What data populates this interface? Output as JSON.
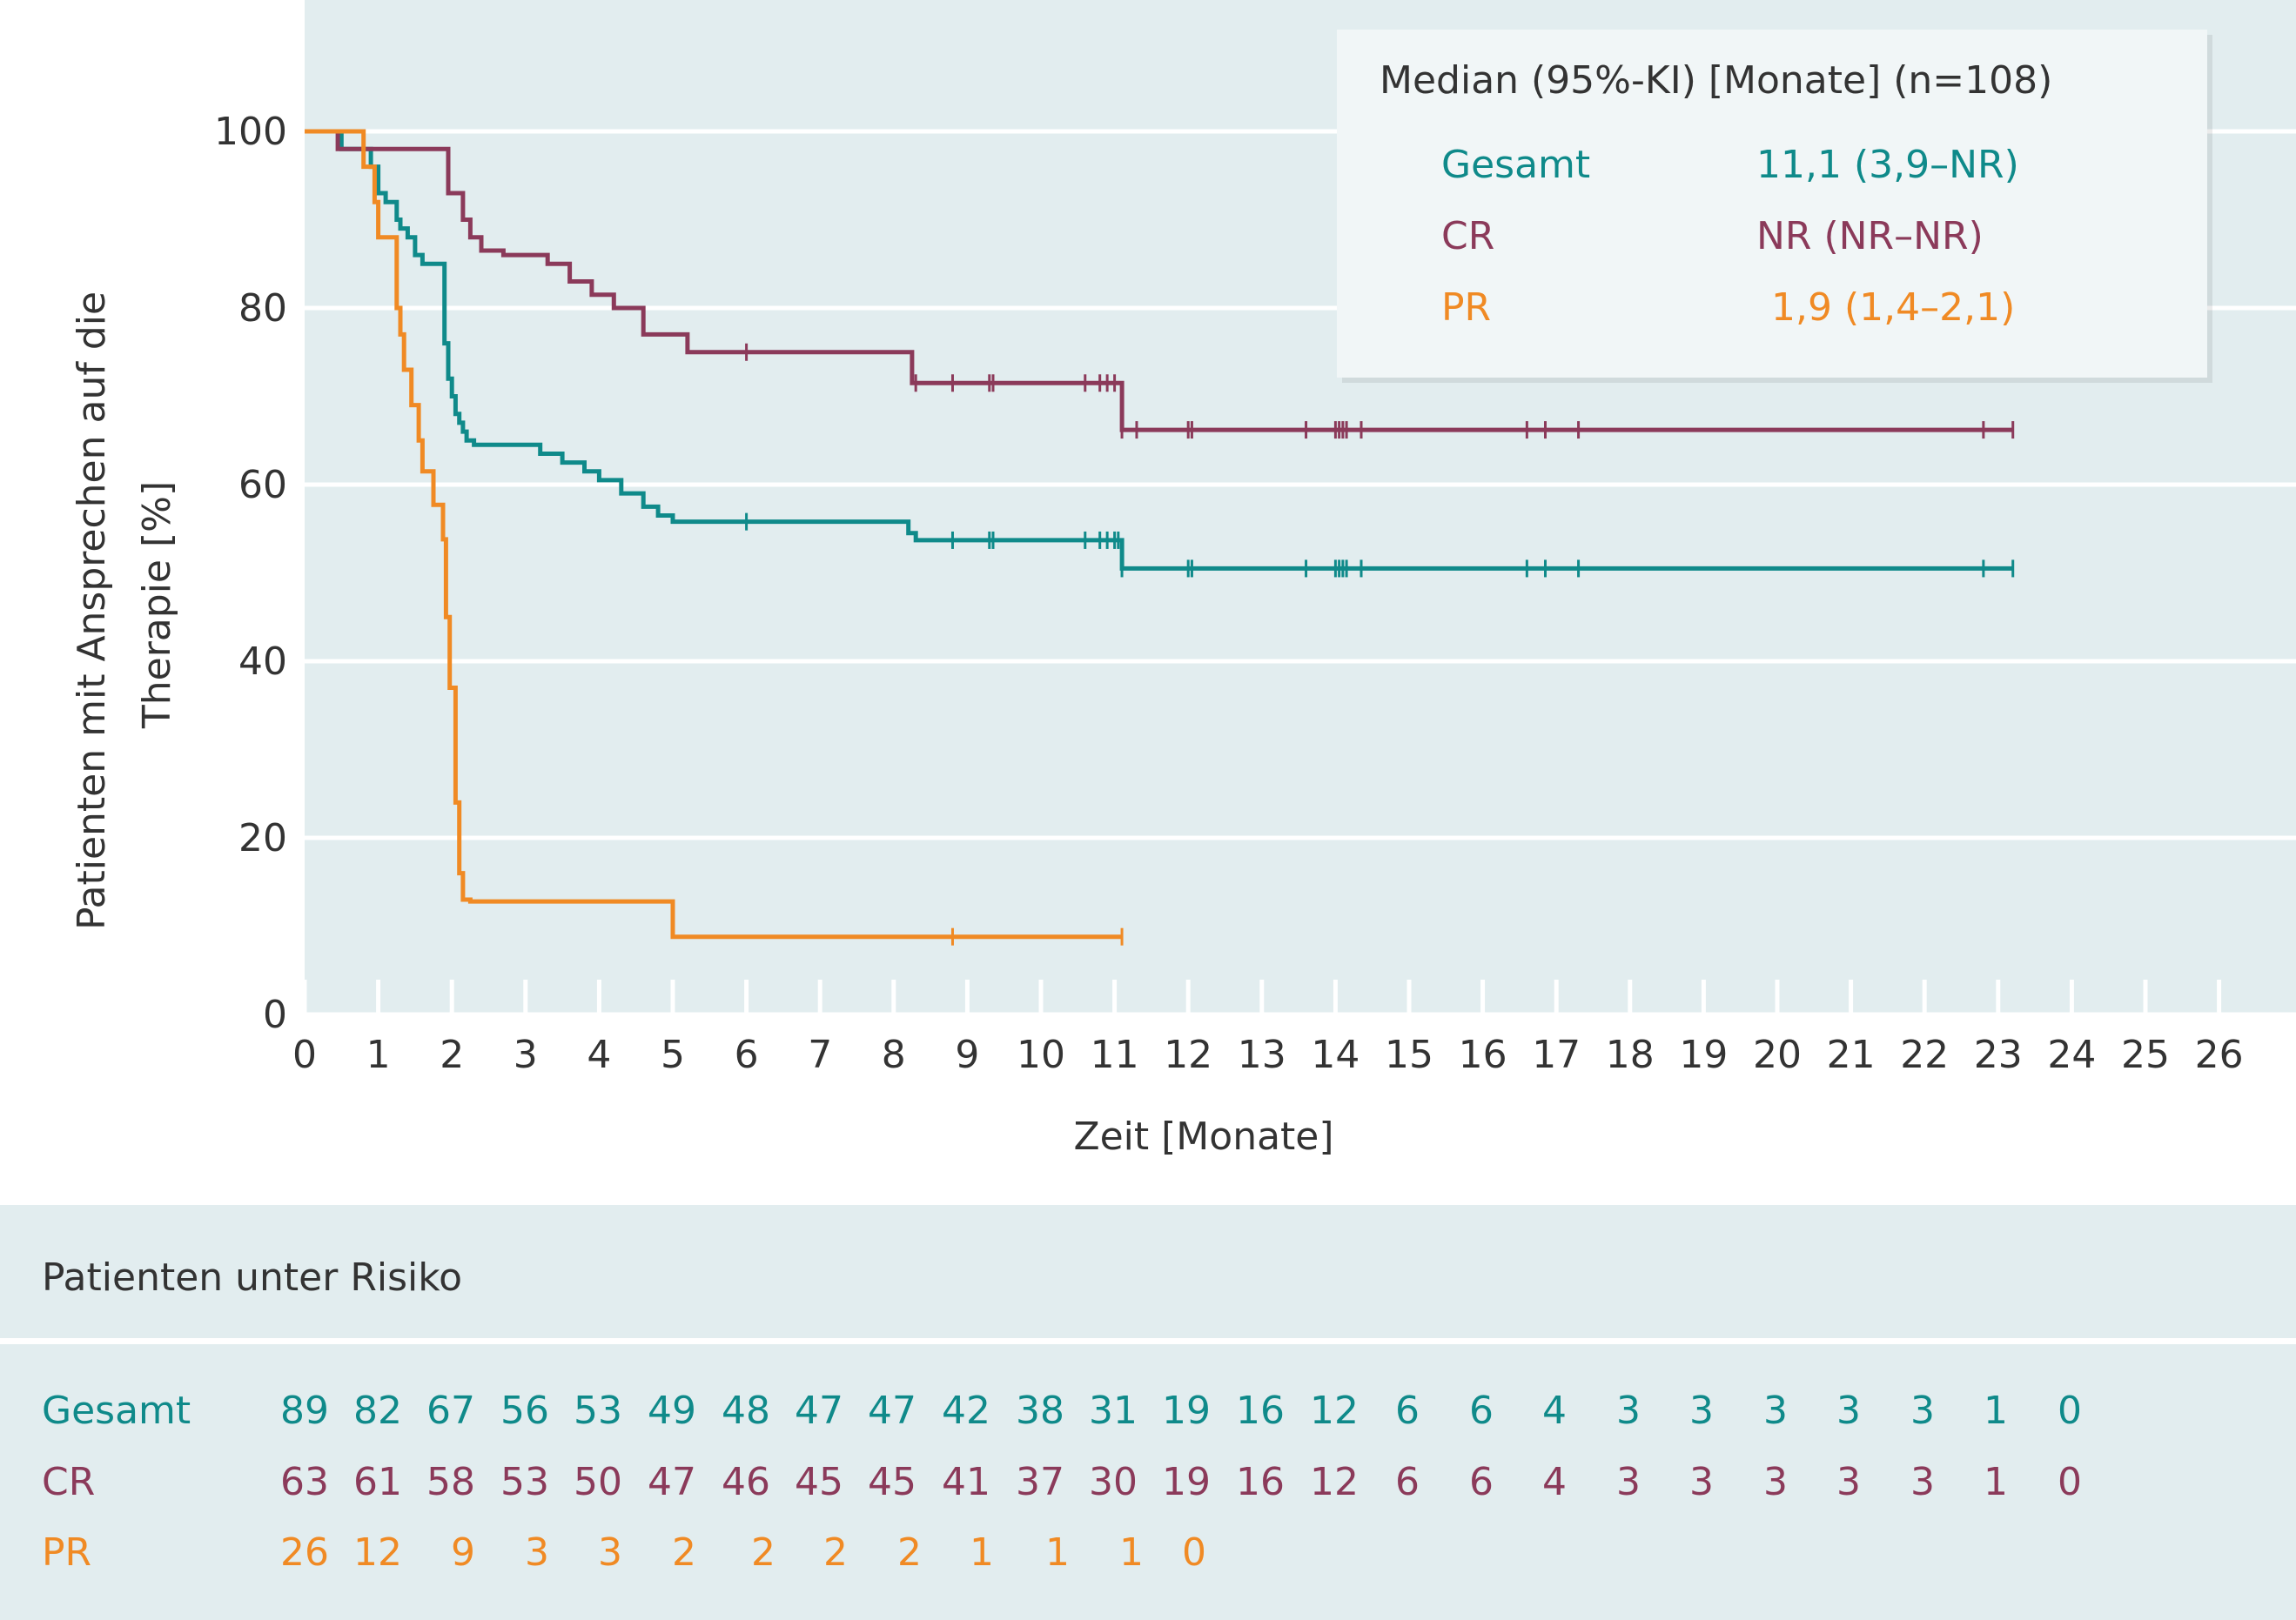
{
  "colors": {
    "plot_bg": "#e2edef",
    "grid": "#ffffff",
    "axis": "#ffffff",
    "text": "#333333",
    "gesamt": "#0f8a8a",
    "cr": "#8b3a5a",
    "pr": "#f08a24",
    "risk_bg": "#e2edef"
  },
  "legend": {
    "header": "Median (95%-KI) [Monate] (n=108)",
    "rows": [
      {
        "name": "Gesamt",
        "value": "11,1 (3,9–NR)"
      },
      {
        "name": "CR",
        "value": "NR (NR–NR)"
      },
      {
        "name": "PR",
        "value": "1,9 (1,4–2,1)"
      }
    ]
  },
  "risk_table": {
    "title": "Patienten unter Risiko",
    "rows": [
      {
        "name": "Gesamt",
        "values": [
          "89",
          "82",
          "67",
          "56",
          "53",
          "49",
          "48",
          "47",
          "47",
          "42",
          "38",
          "31",
          "19",
          "16",
          "12",
          "6",
          "6",
          "4",
          "3",
          "3",
          "3",
          "3",
          "3",
          "1",
          "0"
        ]
      },
      {
        "name": "CR",
        "values": [
          "63",
          "61",
          "58",
          "53",
          "50",
          "47",
          "46",
          "45",
          "45",
          "41",
          "37",
          "30",
          "19",
          "16",
          "12",
          "6",
          "6",
          "4",
          "3",
          "3",
          "3",
          "3",
          "3",
          "1",
          "0"
        ]
      },
      {
        "name": "PR",
        "values": [
          "26",
          "12",
          "9",
          "3",
          "3",
          "2",
          "2",
          "2",
          "2",
          "1",
          "1",
          "1",
          "0"
        ]
      }
    ]
  },
  "chart_data": {
    "type": "line",
    "step": true,
    "xlabel": "Zeit [Monate]",
    "ylabel": "Patienten mit Ansprechen auf die Therapie [%]",
    "xlim": [
      0,
      26
    ],
    "ylim": [
      0,
      110
    ],
    "xticks": [
      0,
      1,
      2,
      3,
      4,
      5,
      6,
      7,
      8,
      9,
      10,
      11,
      12,
      13,
      14,
      15,
      16,
      17,
      18,
      19,
      20,
      21,
      22,
      23,
      24,
      25,
      26
    ],
    "yticks": [
      0,
      20,
      40,
      60,
      80,
      100
    ],
    "grid": true,
    "legend_position": "top-right",
    "series": [
      {
        "name": "Gesamt",
        "x": [
          0,
          0.45,
          0.5,
          0.85,
          0.9,
          1.0,
          1.1,
          1.25,
          1.3,
          1.4,
          1.5,
          1.6,
          1.9,
          1.95,
          2.0,
          2.05,
          2.1,
          2.15,
          2.2,
          2.3,
          3.2,
          3.5,
          3.8,
          4.0,
          4.3,
          4.6,
          4.8,
          5.0,
          8.1,
          8.2,
          8.3,
          11.05,
          11.1,
          23.2
        ],
        "y": [
          100,
          100,
          98,
          98,
          96,
          93,
          92,
          90,
          89,
          88,
          86,
          85,
          76,
          72,
          70,
          68,
          67,
          66,
          65,
          64.5,
          63.5,
          62.5,
          61.5,
          60.5,
          59,
          57.5,
          56.5,
          55.8,
          55.8,
          54.5,
          53.7,
          53.7,
          50.5,
          50.5
        ],
        "censor_x": [
          6.0,
          8.8,
          9.3,
          9.35,
          10.6,
          10.8,
          10.9,
          11.0,
          11.05,
          11.1,
          12.0,
          12.05,
          13.6,
          14.0,
          14.05,
          14.1,
          14.15,
          14.35,
          16.6,
          16.85,
          17.3,
          22.8,
          23.2
        ]
      },
      {
        "name": "CR",
        "x": [
          0,
          0.4,
          0.45,
          1.9,
          1.95,
          2.15,
          2.25,
          2.4,
          2.7,
          3.3,
          3.6,
          3.9,
          4.2,
          4.6,
          5.2,
          8.1,
          8.25,
          11.05,
          11.1,
          23.2
        ],
        "y": [
          100,
          100,
          98,
          98,
          93,
          90,
          88,
          86.5,
          86,
          85,
          83,
          81.5,
          80,
          77,
          75,
          75,
          71.5,
          71.5,
          66.2,
          66.2
        ],
        "censor_x": [
          6.0,
          8.3,
          8.8,
          9.3,
          9.35,
          10.6,
          10.8,
          10.9,
          11.0,
          11.1,
          11.3,
          12.0,
          12.05,
          13.6,
          14.0,
          14.05,
          14.1,
          14.15,
          14.35,
          16.6,
          16.85,
          17.3,
          22.8,
          23.2
        ]
      },
      {
        "name": "PR",
        "x": [
          0,
          0.75,
          0.8,
          0.95,
          1.0,
          1.25,
          1.3,
          1.35,
          1.45,
          1.55,
          1.6,
          1.75,
          1.88,
          1.92,
          1.97,
          2.05,
          2.1,
          2.15,
          2.25,
          5.0,
          11.1
        ],
        "y": [
          100,
          100,
          96,
          92,
          88,
          80,
          77,
          73,
          69,
          65,
          61.5,
          57.7,
          53.8,
          45,
          37,
          24,
          16,
          13,
          12.8,
          8.8,
          8.8
        ],
        "censor_x": [
          8.8,
          11.1
        ]
      }
    ]
  }
}
